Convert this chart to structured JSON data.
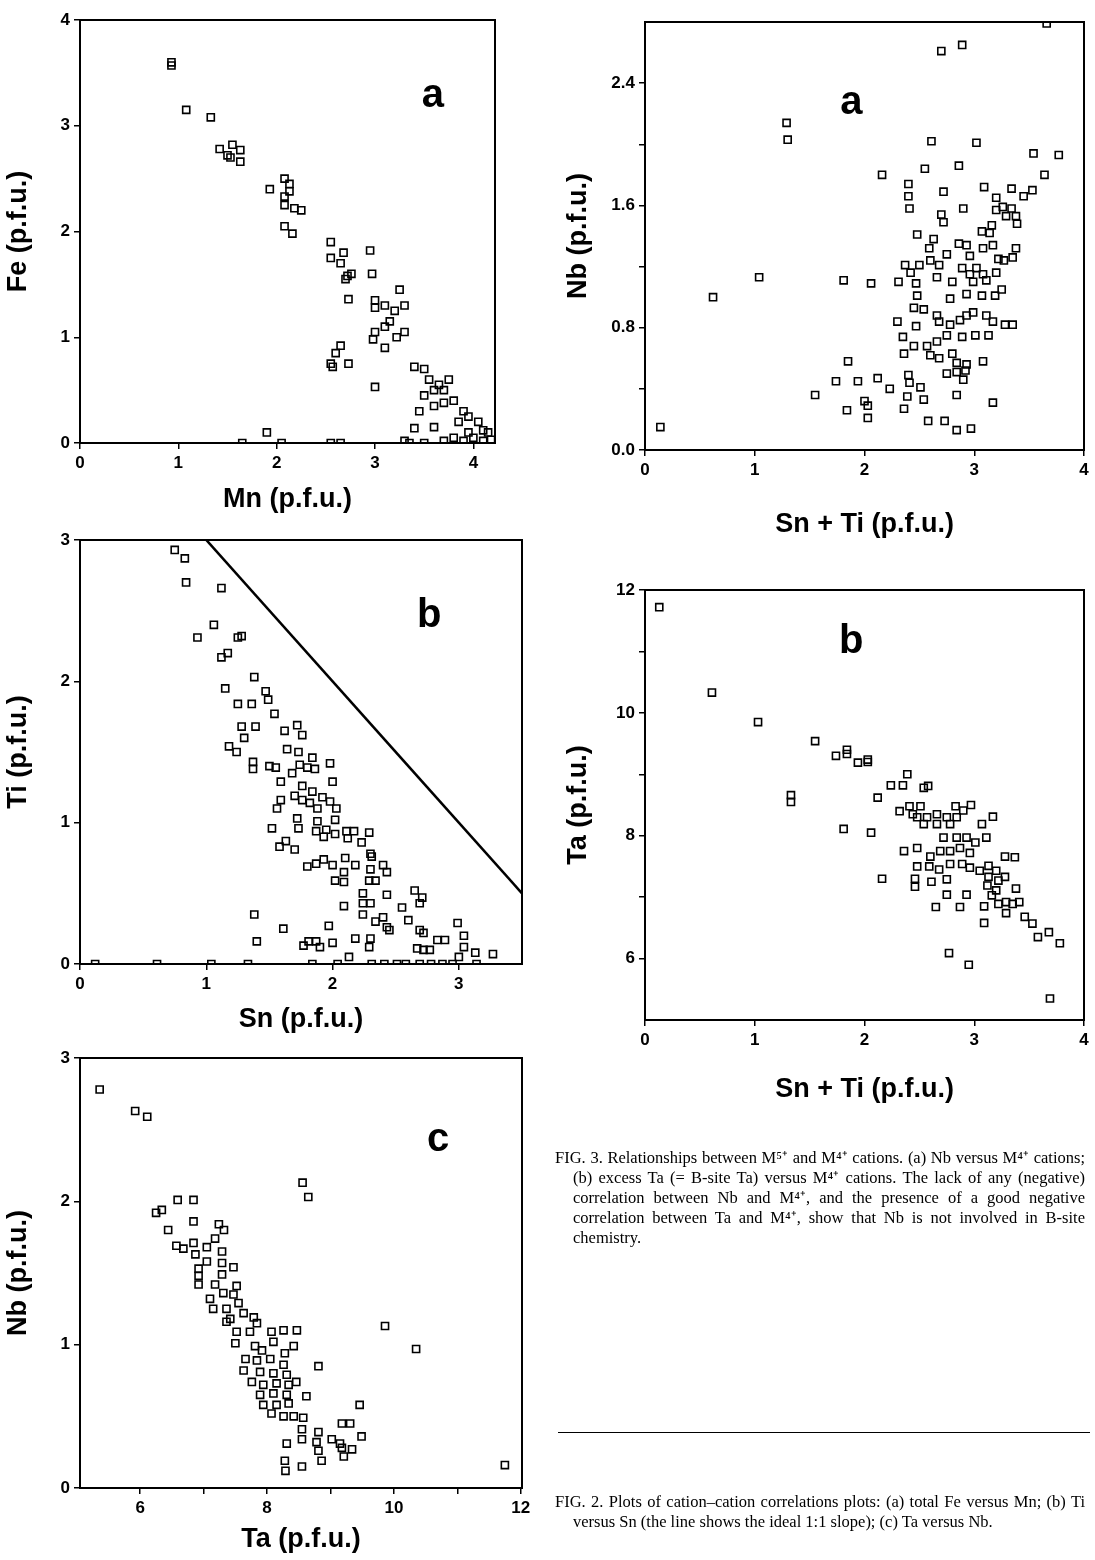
{
  "chart_data": [
    {
      "type": "scatter",
      "xlabel": "Mn (p.f.u.)",
      "ylabel": "Fe (p.f.u.)",
      "marker": "square",
      "annotations": [
        "a"
      ],
      "xlim": [
        0,
        4.22
      ],
      "ylim": [
        0,
        4
      ],
      "xticks": [
        0,
        1,
        2,
        3,
        4
      ],
      "yticks": [
        0,
        1,
        2,
        3,
        4
      ],
      "series": [
        {
          "color": "#000000",
          "x": [
            0.93,
            0.93,
            1.08,
            1.33,
            1.42,
            1.55,
            1.5,
            1.53,
            1.63,
            1.63,
            1.93,
            2.08,
            2.13,
            2.08,
            2.08,
            2.13,
            2.18,
            2.25,
            2.08,
            2.16,
            2.55,
            2.55,
            2.68,
            2.65,
            2.7,
            2.72,
            2.76,
            2.95,
            2.97,
            2.73,
            3.0,
            3.0,
            3.1,
            3.2,
            3.25,
            3.1,
            3.0,
            3.15,
            3.22,
            3.3,
            3.3,
            2.98,
            3.1,
            3.0,
            2.65,
            2.6,
            2.55,
            2.57,
            2.73,
            3.4,
            3.5,
            3.55,
            3.6,
            3.65,
            3.7,
            3.75,
            3.5,
            3.45,
            3.6,
            3.8,
            3.9,
            3.85,
            3.95,
            4.05,
            4.1,
            4.15,
            3.7,
            3.4,
            3.3,
            3.6,
            1.65,
            1.9,
            2.05,
            2.55,
            2.65,
            3.35,
            3.5,
            3.7,
            3.8,
            3.9,
            4.0,
            4.1,
            4.18,
            3.95
          ],
          "values": [
            3.6,
            3.57,
            3.15,
            3.08,
            2.78,
            2.82,
            2.72,
            2.7,
            2.77,
            2.66,
            2.4,
            2.5,
            2.45,
            2.33,
            2.25,
            2.38,
            2.22,
            2.2,
            2.05,
            1.98,
            1.9,
            1.75,
            1.8,
            1.7,
            1.55,
            1.58,
            1.6,
            1.82,
            1.6,
            1.36,
            1.35,
            1.28,
            1.3,
            1.25,
            1.45,
            1.1,
            1.05,
            1.15,
            1.0,
            1.05,
            1.3,
            0.98,
            0.9,
            0.53,
            0.92,
            0.85,
            0.75,
            0.72,
            0.75,
            0.72,
            0.7,
            0.6,
            0.5,
            0.55,
            0.5,
            0.6,
            0.45,
            0.3,
            0.35,
            0.4,
            0.3,
            0.2,
            0.25,
            0.2,
            0.12,
            0.1,
            0.38,
            0.14,
            0.02,
            0.15,
            0,
            0.1,
            0,
            0,
            0,
            0,
            0,
            0.02,
            0.05,
            0.02,
            0.05,
            0.02,
            0.03,
            0.1
          ]
        }
      ]
    },
    {
      "type": "scatter",
      "xlabel": "Sn + Ti (p.f.u.)",
      "ylabel": "Nb (p.f.u.)",
      "marker": "square",
      "annotations": [
        "a"
      ],
      "xlim": [
        0,
        4
      ],
      "ylim": [
        0,
        2.8
      ],
      "xticks": [
        0,
        1,
        2,
        3,
        4
      ],
      "yticks": [
        {
          "value": 0,
          "label": "0.0"
        },
        {
          "value": 0.4,
          "label": null
        },
        0.8,
        {
          "value": 1.2,
          "label": null
        },
        1.6,
        {
          "value": 2,
          "label": null
        },
        2.4
      ],
      "series": [
        {
          "color": "#000000",
          "x": [
            3.66,
            2.7,
            2.89,
            1.29,
            1.3,
            2.61,
            3.02,
            3.54,
            3.77,
            2.55,
            2.86,
            3.64,
            2.16,
            2.4,
            2.4,
            2.41,
            2.72,
            3.09,
            3.34,
            3.53,
            3.45,
            3.2,
            2.9,
            2.7,
            2.72,
            3.26,
            3.2,
            3.34,
            3.39,
            3.38,
            3.29,
            3.16,
            3.07,
            2.48,
            2.63,
            3.14,
            2.59,
            2.86,
            2.93,
            3.17,
            3.38,
            2.75,
            2.96,
            3.08,
            3.22,
            3.27,
            3.35,
            2.6,
            2.37,
            2.5,
            2.68,
            2.89,
            3.02,
            2.96,
            3.08,
            3.2,
            2.42,
            2.66,
            2.8,
            2.99,
            3.11,
            1.81,
            2.06,
            2.31,
            1.04,
            0.62,
            2.47,
            2.48,
            2.45,
            2.54,
            2.66,
            2.78,
            2.93,
            3.07,
            3.19,
            3.25,
            2.68,
            2.78,
            2.87,
            2.93,
            2.99,
            3.11,
            3.17,
            3.28,
            3.35,
            2.3,
            2.47,
            2.35,
            2.45,
            2.57,
            2.66,
            2.75,
            2.89,
            3.01,
            3.13,
            2.36,
            2.6,
            2.68,
            2.8,
            2.93,
            3.08,
            2.84,
            2.75,
            2.84,
            2.92,
            2.9,
            1.85,
            1.74,
            1.94,
            2.12,
            2.23,
            2.4,
            2.41,
            2.51,
            1.55,
            2.0,
            2.03,
            2.03,
            1.84,
            2.39,
            2.54,
            2.36,
            2.84,
            3.17,
            2.58,
            2.73,
            2.84,
            2.97,
            0.14
          ],
          "values": [
            2.79,
            2.61,
            2.65,
            2.14,
            2.03,
            2.02,
            2.01,
            1.94,
            1.93,
            1.84,
            1.86,
            1.8,
            1.8,
            1.74,
            1.66,
            1.58,
            1.69,
            1.72,
            1.71,
            1.7,
            1.66,
            1.65,
            1.58,
            1.54,
            1.49,
            1.59,
            1.57,
            1.58,
            1.48,
            1.53,
            1.53,
            1.47,
            1.43,
            1.41,
            1.38,
            1.42,
            1.32,
            1.35,
            1.34,
            1.34,
            1.32,
            1.28,
            1.27,
            1.32,
            1.25,
            1.24,
            1.26,
            1.24,
            1.21,
            1.21,
            1.21,
            1.19,
            1.19,
            1.15,
            1.15,
            1.16,
            1.16,
            1.13,
            1.1,
            1.1,
            1.11,
            1.11,
            1.09,
            1.1,
            1.13,
            1.0,
            1.09,
            1.01,
            0.93,
            0.92,
            0.88,
            0.99,
            1.02,
            1.01,
            1.01,
            1.05,
            0.84,
            0.82,
            0.85,
            0.88,
            0.9,
            0.88,
            0.84,
            0.82,
            0.82,
            0.84,
            0.81,
            0.74,
            0.68,
            0.68,
            0.71,
            0.75,
            0.74,
            0.75,
            0.75,
            0.63,
            0.62,
            0.6,
            0.63,
            0.56,
            0.58,
            0.57,
            0.5,
            0.51,
            0.52,
            0.46,
            0.58,
            0.45,
            0.45,
            0.47,
            0.4,
            0.49,
            0.44,
            0.41,
            0.36,
            0.32,
            0.29,
            0.21,
            0.26,
            0.35,
            0.33,
            0.27,
            0.36,
            0.31,
            0.19,
            0.19,
            0.13,
            0.14,
            0.15
          ]
        }
      ]
    },
    {
      "type": "scatter",
      "xlabel": "Sn (p.f.u.)",
      "ylabel": "Ti (p.f.u.)",
      "marker": "square",
      "annotations": [
        "b"
      ],
      "xlim": [
        0,
        3.5
      ],
      "ylim": [
        0,
        3
      ],
      "xticks": [
        0,
        1,
        2,
        3
      ],
      "yticks": [
        0,
        1,
        2,
        3
      ],
      "series": [
        {
          "color": "#000000",
          "x": [
            0.75,
            0.83,
            0.84,
            1.12,
            1.06,
            0.93,
            1.25,
            1.28,
            1.12,
            1.17,
            1.38,
            1.15,
            1.47,
            1.49,
            1.25,
            1.36,
            1.54,
            1.28,
            1.39,
            1.72,
            1.62,
            1.76,
            1.3,
            1.18,
            1.24,
            1.64,
            1.73,
            1.37,
            1.37,
            1.5,
            1.55,
            1.84,
            1.98,
            1.68,
            1.86,
            1.8,
            1.74,
            1.59,
            2.0,
            1.76,
            1.84,
            1.7,
            1.59,
            1.76,
            1.82,
            1.92,
            1.98,
            1.56,
            1.88,
            2.03,
            1.72,
            1.88,
            2.02,
            1.52,
            1.73,
            1.87,
            1.95,
            2.02,
            2.11,
            2.17,
            2.29,
            1.93,
            2.12,
            2.23,
            1.63,
            1.58,
            1.7,
            1.8,
            1.87,
            1.93,
            2.0,
            2.1,
            2.18,
            2.3,
            2.31,
            2.09,
            2.02,
            2.09,
            2.3,
            2.4,
            2.43,
            2.29,
            2.34,
            2.24,
            2.24,
            2.3,
            2.43,
            2.09,
            2.24,
            2.4,
            2.65,
            2.71,
            2.69,
            2.55,
            2.34,
            2.43,
            2.45,
            2.6,
            2.69,
            2.72,
            2.99,
            3.04,
            2.89,
            2.83,
            3.04,
            1.38,
            1.4,
            1.61,
            1.97,
            1.77,
            1.81,
            1.87,
            2.0,
            1.9,
            2.18,
            2.3,
            2.29,
            2.72,
            2.67,
            2.77,
            2.13,
            3.27,
            3.13,
            3.0,
            0.12,
            0.61,
            1.04,
            1.33,
            1.84,
            2.04,
            2.31,
            2.41,
            2.51,
            2.58,
            2.69,
            2.78,
            2.87,
            2.95,
            3.14
          ],
          "values": [
            2.93,
            2.87,
            2.7,
            2.66,
            2.4,
            2.31,
            2.31,
            2.32,
            2.17,
            2.2,
            2.03,
            1.95,
            1.93,
            1.87,
            1.84,
            1.84,
            1.77,
            1.68,
            1.68,
            1.69,
            1.65,
            1.62,
            1.6,
            1.54,
            1.5,
            1.52,
            1.5,
            1.43,
            1.38,
            1.4,
            1.39,
            1.46,
            1.42,
            1.35,
            1.38,
            1.39,
            1.41,
            1.29,
            1.29,
            1.26,
            1.22,
            1.19,
            1.16,
            1.16,
            1.14,
            1.18,
            1.15,
            1.1,
            1.1,
            1.1,
            1.03,
            1.01,
            1.02,
            0.96,
            0.96,
            0.94,
            0.95,
            0.92,
            0.94,
            0.94,
            0.93,
            0.9,
            0.89,
            0.86,
            0.87,
            0.83,
            0.81,
            0.69,
            0.71,
            0.74,
            0.7,
            0.75,
            0.7,
            0.78,
            0.76,
            0.65,
            0.59,
            0.58,
            0.67,
            0.7,
            0.65,
            0.59,
            0.59,
            0.5,
            0.43,
            0.43,
            0.49,
            0.41,
            0.35,
            0.33,
            0.52,
            0.47,
            0.43,
            0.4,
            0.3,
            0.26,
            0.24,
            0.31,
            0.24,
            0.22,
            0.29,
            0.2,
            0.17,
            0.17,
            0.12,
            0.35,
            0.16,
            0.25,
            0.27,
            0.13,
            0.16,
            0.16,
            0.15,
            0.12,
            0.18,
            0.18,
            0.12,
            0.1,
            0.11,
            0.1,
            0.05,
            0.07,
            0.08,
            0.05,
            0,
            0,
            0,
            0,
            0,
            0,
            0,
            0,
            0,
            0,
            0,
            0,
            0,
            0,
            0
          ]
        },
        {
          "type": "line",
          "color": "#000000",
          "marker": "none",
          "x": [
            1,
            3.5
          ],
          "values": [
            3,
            0.5
          ]
        }
      ]
    },
    {
      "type": "scatter",
      "xlabel": "Sn + Ti (p.f.u.)",
      "ylabel": "Ta (p.f.u.)",
      "marker": "square",
      "annotations": [
        "b",
        "FIG. 3. Relationships between M⁵⁺ and M⁴⁺ cations. (a) Nb versus M⁴⁺ cations; (b) excess Ta (= B-site Ta) versus M⁴⁺ cations. The lack of any (negative) correlation between Nb and M⁴⁺, and the presence of a good negative correlation between Ta and M⁴⁺, show that Nb is not involved in B-site chemistry."
      ],
      "xlim": [
        0,
        4
      ],
      "ylim": [
        5,
        12
      ],
      "xticks": [
        0,
        1,
        2,
        3,
        4
      ],
      "yticks": [
        6,
        {
          "value": 7,
          "label": null
        },
        8,
        {
          "value": 9,
          "label": null
        },
        10,
        {
          "value": 11,
          "label": null
        },
        12
      ],
      "series": [
        {
          "color": "#000000",
          "x": [
            0.13,
            0.61,
            1.03,
            1.55,
            1.74,
            1.84,
            1.84,
            1.94,
            2.03,
            2.03,
            1.33,
            1.33,
            2.12,
            2.39,
            2.24,
            2.35,
            2.54,
            2.58,
            2.32,
            2.41,
            2.51,
            2.83,
            2.97,
            1.81,
            2.06,
            2.16,
            2.44,
            2.48,
            2.57,
            2.66,
            2.75,
            2.84,
            2.9,
            2.54,
            2.66,
            2.78,
            3.07,
            3.17,
            2.72,
            2.84,
            2.93,
            3.01,
            3.11,
            2.36,
            2.48,
            2.6,
            2.69,
            2.78,
            2.87,
            2.96,
            2.48,
            2.59,
            2.68,
            2.78,
            2.89,
            2.96,
            3.05,
            3.13,
            3.2,
            3.28,
            3.37,
            2.46,
            2.46,
            2.61,
            2.75,
            3.13,
            3.22,
            3.28,
            3.12,
            3.2,
            3.38,
            2.75,
            2.93,
            3.16,
            3.22,
            3.29,
            3.35,
            3.41,
            2.65,
            2.87,
            3.09,
            3.29,
            3.46,
            3.53,
            3.58,
            3.68,
            3.78,
            3.09,
            2.77,
            2.95,
            3.69
          ],
          "values": [
            11.72,
            10.33,
            9.85,
            9.54,
            9.3,
            9.4,
            9.33,
            9.19,
            9.24,
            9.2,
            8.66,
            8.55,
            8.62,
            9.0,
            8.82,
            8.82,
            8.78,
            8.81,
            8.4,
            8.48,
            8.48,
            8.48,
            8.5,
            8.11,
            8.05,
            7.3,
            8.35,
            8.3,
            8.3,
            8.35,
            8.3,
            8.3,
            8.41,
            8.19,
            8.19,
            8.19,
            8.19,
            8.31,
            7.97,
            7.97,
            7.97,
            7.89,
            7.97,
            7.75,
            7.8,
            7.66,
            7.75,
            7.75,
            7.8,
            7.72,
            7.5,
            7.5,
            7.45,
            7.54,
            7.54,
            7.48,
            7.43,
            7.51,
            7.43,
            7.66,
            7.65,
            7.3,
            7.17,
            7.25,
            7.29,
            7.33,
            7.27,
            7.33,
            7.19,
            7.11,
            7.14,
            7.04,
            7.04,
            7.03,
            6.89,
            6.92,
            6.89,
            6.92,
            6.84,
            6.84,
            6.85,
            6.74,
            6.68,
            6.57,
            6.35,
            6.43,
            6.25,
            6.58,
            6.09,
            5.9,
            5.35
          ]
        }
      ]
    },
    {
      "type": "scatter",
      "xlabel": "Ta (p.f.u.)",
      "ylabel": "Nb (p.f.u.)",
      "marker": "square",
      "annotations": [
        "c",
        "FIG. 2. Plots of cation–cation correlations plots: (a) total Fe versus Mn; (b) Ti versus Sn (the line shows the ideal 1:1 slope); (c) Ta versus Nb."
      ],
      "xlim": [
        5.05,
        12.02
      ],
      "ylim": [
        0,
        3
      ],
      "xticks": [
        6,
        {
          "value": 7,
          "label": null
        },
        8,
        {
          "value": 9,
          "label": null
        },
        10,
        {
          "value": 11,
          "label": null
        },
        12
      ],
      "yticks": [
        0,
        1,
        2,
        3
      ],
      "series": [
        {
          "color": "#000000",
          "x": [
            5.36,
            5.92,
            6.11,
            8.56,
            8.65,
            6.59,
            6.84,
            6.25,
            6.34,
            6.84,
            7.24,
            7.32,
            6.44,
            7.18,
            6.57,
            6.68,
            6.84,
            7.05,
            7.29,
            6.87,
            7.05,
            7.29,
            7.47,
            6.92,
            7.29,
            6.92,
            6.92,
            7.18,
            7.52,
            7.1,
            7.31,
            7.47,
            7.15,
            7.36,
            7.55,
            7.42,
            7.63,
            7.79,
            7.84,
            7.36,
            7.52,
            7.73,
            7.5,
            8.07,
            8.26,
            8.47,
            8.1,
            8.42,
            8.28,
            7.81,
            7.92,
            7.66,
            7.84,
            8.05,
            8.26,
            7.63,
            7.89,
            8.1,
            8.31,
            7.76,
            7.94,
            8.15,
            8.34,
            8.46,
            7.89,
            8.1,
            8.31,
            7.94,
            8.15,
            8.34,
            8.07,
            8.26,
            8.42,
            8.57,
            8.81,
            8.62,
            9.46,
            9.86,
            10.35,
            11.75,
            8.55,
            8.31,
            8.55,
            8.81,
            8.78,
            8.81,
            9.02,
            9.18,
            9.31,
            9.15,
            9.18,
            9.34,
            9.21,
            9.49,
            8.86,
            8.28,
            8.29,
            8.55
          ],
          "values": [
            2.78,
            2.63,
            2.59,
            2.13,
            2.03,
            2.01,
            2.01,
            1.92,
            1.94,
            1.86,
            1.84,
            1.8,
            1.8,
            1.74,
            1.69,
            1.67,
            1.71,
            1.68,
            1.65,
            1.63,
            1.58,
            1.57,
            1.54,
            1.53,
            1.49,
            1.48,
            1.42,
            1.42,
            1.41,
            1.32,
            1.36,
            1.35,
            1.25,
            1.25,
            1.29,
            1.18,
            1.22,
            1.19,
            1.15,
            1.16,
            1.09,
            1.09,
            1.01,
            1.09,
            1.1,
            1.1,
            1.02,
            0.99,
            0.94,
            0.99,
            0.96,
            0.9,
            0.89,
            0.9,
            0.86,
            0.82,
            0.81,
            0.8,
            0.79,
            0.74,
            0.72,
            0.73,
            0.72,
            0.74,
            0.65,
            0.66,
            0.65,
            0.58,
            0.58,
            0.59,
            0.52,
            0.5,
            0.5,
            0.49,
            0.85,
            0.64,
            0.58,
            1.13,
            0.97,
            0.16,
            0.41,
            0.31,
            0.34,
            0.39,
            0.32,
            0.26,
            0.34,
            0.45,
            0.45,
            0.31,
            0.28,
            0.27,
            0.22,
            0.36,
            0.19,
            0.19,
            0.12,
            0.15
          ]
        }
      ]
    }
  ]
}
